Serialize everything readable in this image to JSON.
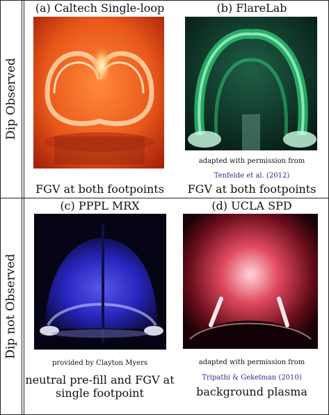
{
  "rows": [
    {
      "label": "Dip Observed",
      "panels": [
        {
          "title": "(a) Caltech Single-loop",
          "credit_text": "",
          "credit_citation": "",
          "caption": "FGV at both footpoints"
        },
        {
          "title": "(b) FlareLab",
          "credit_text": "adapted with permission from",
          "credit_citation": "Tenfelde et al. (2012)",
          "caption": "FGV at both footpoints"
        }
      ]
    },
    {
      "label": "Dip not Observed",
      "panels": [
        {
          "title": "(c) PPPL MRX",
          "credit_text": "provided by Clayton Myers",
          "credit_citation": "",
          "caption": "neutral pre-fill and FGV at single footpoint"
        },
        {
          "title": "(d) UCLA SPD",
          "credit_text": "adapted with permission from",
          "credit_citation": "Tripathi & Gekelman (2010)",
          "caption": "background plasma"
        }
      ]
    }
  ],
  "colors": {
    "caltech": "#e8581a",
    "flarelab": "#2fcf79",
    "pppl": "#3f3cf0",
    "ucla": "#e04a5e",
    "citation": "#2b2b8c"
  }
}
